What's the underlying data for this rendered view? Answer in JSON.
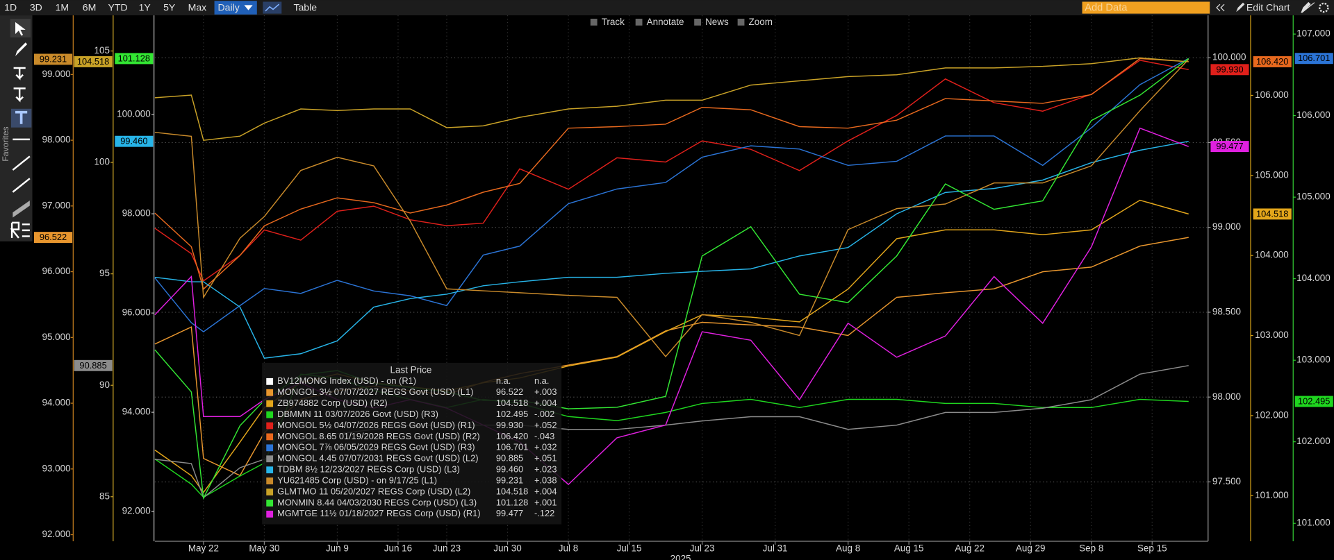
{
  "toolbar": {
    "ranges": [
      "1D",
      "3D",
      "1M",
      "6M",
      "YTD",
      "1Y",
      "5Y",
      "Max"
    ],
    "frequency": "Daily",
    "table": "Table",
    "add_data": "Add Data",
    "edit_chart": "Edit Chart",
    "chart_tools": [
      "Track",
      "Annotate",
      "News",
      "Zoom"
    ],
    "favorites": "Favorites"
  },
  "chart_data": {
    "type": "line",
    "x_axis_label": "2025",
    "legend_title": "Last Price",
    "grid": true,
    "grid_axis": "R1",
    "xlim": [
      0,
      86.6
    ],
    "xticks": [
      {
        "value": 4,
        "label": "May 22"
      },
      {
        "value": 9,
        "label": "May 30"
      },
      {
        "value": 15,
        "label": "Jun 9"
      },
      {
        "value": 20,
        "label": "Jun 16"
      },
      {
        "value": 24,
        "label": "Jun 23"
      },
      {
        "value": 29,
        "label": "Jun 30"
      },
      {
        "value": 34,
        "label": "Jul 8"
      },
      {
        "value": 39,
        "label": "Jul 15"
      },
      {
        "value": 45,
        "label": "Jul 23"
      },
      {
        "value": 51,
        "label": "Jul 31"
      },
      {
        "value": 57,
        "label": "Aug 8"
      },
      {
        "value": 62,
        "label": "Aug 15"
      },
      {
        "value": 67,
        "label": "Aug 22"
      },
      {
        "value": 72,
        "label": "Aug 29"
      },
      {
        "value": 77,
        "label": "Sep 8"
      },
      {
        "value": 82,
        "label": "Sep 15"
      }
    ],
    "x": [
      0,
      3,
      4,
      7,
      9,
      12,
      15,
      18,
      21,
      24,
      27,
      30,
      34,
      38,
      42,
      45,
      49,
      53,
      57,
      61,
      65,
      69,
      73,
      77,
      81,
      85
    ],
    "axes": [
      {
        "id": "L1",
        "color": "#c8801e",
        "ylim": [
          91.9,
          99.9
        ],
        "yticks": [
          {
            "value": 92,
            "label": "92.000"
          },
          {
            "value": 93,
            "label": "93.000"
          },
          {
            "value": 94,
            "label": "94.000"
          },
          {
            "value": 95,
            "label": "95.000"
          },
          {
            "value": 96,
            "label": "96.000"
          },
          {
            "value": 97,
            "label": "97.000"
          },
          {
            "value": 98,
            "label": "98.000"
          },
          {
            "value": 99,
            "label": "99.000"
          }
        ]
      },
      {
        "id": "L2",
        "color": "#c9a227",
        "ylim": [
          83,
          106.6
        ],
        "yticks": [
          85,
          90,
          95,
          100,
          105
        ]
      },
      {
        "id": "L3",
        "color": "#bbbbbb",
        "ylim": [
          91.4,
          102
        ],
        "yticks": [
          {
            "value": 92,
            "label": "92.000"
          },
          {
            "value": 94,
            "label": "94.000"
          },
          {
            "value": 96,
            "label": "96.000"
          },
          {
            "value": 98,
            "label": "98.000"
          },
          {
            "value": 100,
            "label": "100.000"
          }
        ]
      },
      {
        "id": "R1",
        "color": "#999999",
        "ylim": [
          97.15,
          100.25
        ],
        "yticks": [
          {
            "value": 97.5,
            "label": "97.500"
          },
          {
            "value": 98,
            "label": "98.000"
          },
          {
            "value": 98.5,
            "label": "98.500"
          },
          {
            "value": 99,
            "label": "99.000"
          },
          {
            "value": 99.5,
            "label": "99.500"
          },
          {
            "value": 100,
            "label": "100.000"
          }
        ]
      },
      {
        "id": "R2",
        "color": "#d4a017",
        "ylim": [
          100.43,
          107
        ],
        "yticks": [
          {
            "value": 101,
            "label": "101.000"
          },
          {
            "value": 102,
            "label": "102.000"
          },
          {
            "value": 103,
            "label": "103.000"
          },
          {
            "value": 104,
            "label": "104.000"
          },
          {
            "value": 105,
            "label": "105.000"
          },
          {
            "value": 106,
            "label": "106.000"
          }
        ]
      },
      {
        "id": "R3",
        "color": "#33cc33",
        "ylim": [
          100.78,
          107.23
        ],
        "yticks": [
          {
            "value": 101,
            "label": "101.000"
          },
          {
            "value": 102,
            "label": "102.000"
          },
          {
            "value": 103,
            "label": "103.000"
          },
          {
            "value": 104,
            "label": "104.000"
          },
          {
            "value": 105,
            "label": "105.000"
          },
          {
            "value": 106,
            "label": "106.000"
          },
          {
            "value": 107,
            "label": "107.000"
          }
        ]
      }
    ],
    "series": [
      {
        "name": "BV12MONG Index (USD) - on (R1)",
        "color": "#ffffff",
        "axis": "R1",
        "last": "n.a.",
        "change": "n.a."
      },
      {
        "name": "MONGOL 3½ 07/07/2027 REGS Govt (USD) (L1)",
        "color": "#e8962e",
        "axis": "L1",
        "last": "96.522",
        "change": "+.003",
        "values": [
          94.9,
          95.16,
          93.16,
          92.9,
          93.55,
          94.06,
          94.19,
          94.26,
          94.19,
          94.13,
          94.32,
          94.45,
          94.58,
          94.71,
          95.1,
          95.23,
          95.19,
          95.16,
          95.03,
          95.61,
          95.68,
          95.74,
          96,
          96.07,
          96.39,
          96.522
        ]
      },
      {
        "name": "ZB974882 Corp (USD) (R2)",
        "color": "#e3a61b",
        "axis": "R2",
        "last": "104.518",
        "change": "+.004",
        "values": [
          101.57,
          101.25,
          101.04,
          101.67,
          102.1,
          102.41,
          102.52,
          102.41,
          102.36,
          102.31,
          102.41,
          102.47,
          102.62,
          102.73,
          103.05,
          103.26,
          103.23,
          103.17,
          103.58,
          104.21,
          104.32,
          104.32,
          104.26,
          104.32,
          104.69,
          104.518
        ]
      },
      {
        "name": "DBMMN 11 03/07/2026 Govt (USD) (R3)",
        "color": "#1fd61f",
        "axis": "R3",
        "last": "102.495",
        "change": "-.002",
        "values": [
          101.79,
          101.48,
          101.32,
          101.58,
          101.74,
          102.83,
          102.78,
          102.63,
          102.52,
          102.42,
          102.52,
          102.47,
          102.31,
          102.26,
          102.36,
          102.47,
          102.52,
          102.42,
          102.52,
          102.52,
          102.47,
          102.47,
          102.42,
          102.42,
          102.52,
          102.495
        ]
      },
      {
        "name": "MONGOL 5½ 04/07/2026 REGS Govt (USD) (R1)",
        "color": "#e0201b",
        "axis": "R1",
        "last": "99.930",
        "change": "+.052",
        "values": [
          98.995,
          98.845,
          98.685,
          98.835,
          98.985,
          98.925,
          99.095,
          99.125,
          99.045,
          99.01,
          99.025,
          99.345,
          99.225,
          99.41,
          99.385,
          99.51,
          99.46,
          99.335,
          99.51,
          99.66,
          99.875,
          99.735,
          99.685,
          99.785,
          99.985,
          99.93
        ]
      },
      {
        "name": "MONGOL 8.65 01/19/2028 REGS Govt (USD) (R2)",
        "color": "#e8691e",
        "axis": "R2",
        "last": "106.420",
        "change": "-.043",
        "values": [
          104.53,
          104.11,
          103.58,
          104,
          104.37,
          104.58,
          104.72,
          104.66,
          104.53,
          104.63,
          104.79,
          104.9,
          105.59,
          105.61,
          105.64,
          105.85,
          105.82,
          105.61,
          105.59,
          105.69,
          105.96,
          105.93,
          105.9,
          106.01,
          106.46,
          106.42
        ]
      },
      {
        "name": "MONGOL 7⅞ 06/05/2029 REGS Govt (USD) (R3)",
        "color": "#2b74d6",
        "axis": "R3",
        "last": "106.701",
        "change": "+.032",
        "values": [
          104.01,
          103.46,
          103.35,
          103.67,
          103.88,
          103.82,
          103.98,
          103.85,
          103.79,
          103.67,
          104.29,
          104.4,
          104.92,
          105.1,
          105.18,
          105.49,
          105.63,
          105.59,
          105.39,
          105.44,
          105.75,
          105.75,
          105.39,
          105.85,
          106.38,
          106.701
        ]
      },
      {
        "name": "MONGOL 4.45 07/07/2031 REGS Govt (USD) (L2)",
        "color": "#8c8c8c",
        "axis": "L2",
        "last": "90.885",
        "change": "+.051",
        "values": [
          86.68,
          86.49,
          84.96,
          86.3,
          86.68,
          87.44,
          87.82,
          88.02,
          88.21,
          88.21,
          88.21,
          88.21,
          88.02,
          88.02,
          88.21,
          88.4,
          88.59,
          88.59,
          88.02,
          88.21,
          88.78,
          88.78,
          88.97,
          89.35,
          90.5,
          90.885
        ]
      },
      {
        "name": "TDBM 8½ 12/23/2027 REGS Corp (USD) (L3)",
        "color": "#27b4e8",
        "axis": "L3",
        "last": "99.460",
        "change": "+.023",
        "values": [
          96.72,
          96.63,
          96.63,
          96.12,
          95.09,
          95.18,
          95.44,
          96.12,
          96.29,
          96.38,
          96.55,
          96.63,
          96.72,
          96.72,
          96.8,
          96.84,
          96.89,
          97.15,
          97.32,
          98,
          98.43,
          98.51,
          98.68,
          99.03,
          99.28,
          99.46
        ]
      },
      {
        "name": "YU621485 Corp (USD) - on 9/17/25 (L1)",
        "color": "#c98a2a",
        "axis": "L1",
        "last": "99.231",
        "change": "+.038",
        "values": [
          98.12,
          98.06,
          95.61,
          96.51,
          96.84,
          97.54,
          97.74,
          97.61,
          96.77,
          95.74,
          95.71,
          95.68,
          95.64,
          95.61,
          94.71,
          95.35,
          95.23,
          95.03,
          96.64,
          96.96,
          97.03,
          97.35,
          97.35,
          97.61,
          98.45,
          99.231
        ]
      },
      {
        "name": "GLMTMO 11 05/20/2027 REGS Corp (USD) (L2)",
        "color": "#c9a227",
        "axis": "L2",
        "last": "104.518",
        "change": "+.004",
        "values": [
          102.9,
          103.02,
          100.99,
          101.18,
          101.76,
          102.4,
          102.33,
          102.4,
          102.4,
          101.56,
          101.64,
          102.02,
          102.4,
          102.52,
          102.79,
          102.79,
          103.47,
          103.66,
          103.85,
          103.93,
          104.24,
          104.24,
          104.31,
          104.43,
          104.69,
          104.518
        ]
      },
      {
        "name": "MONMIN 8.44 04/03/2030 REGS Corp (USD) (L3)",
        "color": "#33e633",
        "axis": "L3",
        "last": "101.128",
        "change": "+.001",
        "values": [
          95.26,
          94.41,
          92.27,
          93.73,
          94.24,
          94.75,
          94.84,
          94.58,
          94.5,
          94.41,
          94.24,
          94.24,
          94.07,
          94.1,
          94.32,
          97.15,
          97.74,
          96.38,
          96.21,
          97.15,
          98.6,
          98.09,
          98.26,
          99.88,
          100.39,
          101.128
        ]
      },
      {
        "name": "MGMTGE 11½ 01/18/2027 REGS Corp (USD) (R1)",
        "color": "#e020e0",
        "axis": "R1",
        "last": "99.477",
        "change": "-.122",
        "values": [
          98.485,
          98.71,
          97.885,
          97.885,
          97.985,
          98.085,
          97.985,
          97.935,
          97.985,
          97.935,
          97.835,
          97.735,
          97.485,
          97.76,
          97.835,
          98.385,
          98.335,
          97.985,
          98.435,
          98.235,
          98.36,
          98.71,
          98.435,
          98.885,
          99.585,
          99.477
        ]
      }
    ]
  }
}
